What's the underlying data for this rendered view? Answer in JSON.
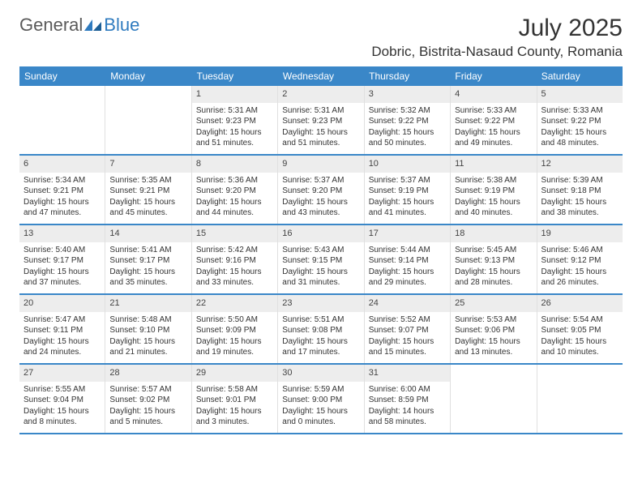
{
  "logo": {
    "text1": "General",
    "text2": "Blue"
  },
  "title": "July 2025",
  "location": "Dobric, Bistrita-Nasaud County, Romania",
  "colors": {
    "brand_blue": "#3a87c8",
    "header_text": "#ffffff",
    "daynum_bg": "#ededed",
    "text": "#333333",
    "logo_gray": "#5a5a5a"
  },
  "dow": [
    "Sunday",
    "Monday",
    "Tuesday",
    "Wednesday",
    "Thursday",
    "Friday",
    "Saturday"
  ],
  "weeks": [
    [
      {
        "n": "",
        "sr": "",
        "ss": "",
        "d1": "",
        "d2": ""
      },
      {
        "n": "",
        "sr": "",
        "ss": "",
        "d1": "",
        "d2": ""
      },
      {
        "n": "1",
        "sr": "Sunrise: 5:31 AM",
        "ss": "Sunset: 9:23 PM",
        "d1": "Daylight: 15 hours",
        "d2": "and 51 minutes."
      },
      {
        "n": "2",
        "sr": "Sunrise: 5:31 AM",
        "ss": "Sunset: 9:23 PM",
        "d1": "Daylight: 15 hours",
        "d2": "and 51 minutes."
      },
      {
        "n": "3",
        "sr": "Sunrise: 5:32 AM",
        "ss": "Sunset: 9:22 PM",
        "d1": "Daylight: 15 hours",
        "d2": "and 50 minutes."
      },
      {
        "n": "4",
        "sr": "Sunrise: 5:33 AM",
        "ss": "Sunset: 9:22 PM",
        "d1": "Daylight: 15 hours",
        "d2": "and 49 minutes."
      },
      {
        "n": "5",
        "sr": "Sunrise: 5:33 AM",
        "ss": "Sunset: 9:22 PM",
        "d1": "Daylight: 15 hours",
        "d2": "and 48 minutes."
      }
    ],
    [
      {
        "n": "6",
        "sr": "Sunrise: 5:34 AM",
        "ss": "Sunset: 9:21 PM",
        "d1": "Daylight: 15 hours",
        "d2": "and 47 minutes."
      },
      {
        "n": "7",
        "sr": "Sunrise: 5:35 AM",
        "ss": "Sunset: 9:21 PM",
        "d1": "Daylight: 15 hours",
        "d2": "and 45 minutes."
      },
      {
        "n": "8",
        "sr": "Sunrise: 5:36 AM",
        "ss": "Sunset: 9:20 PM",
        "d1": "Daylight: 15 hours",
        "d2": "and 44 minutes."
      },
      {
        "n": "9",
        "sr": "Sunrise: 5:37 AM",
        "ss": "Sunset: 9:20 PM",
        "d1": "Daylight: 15 hours",
        "d2": "and 43 minutes."
      },
      {
        "n": "10",
        "sr": "Sunrise: 5:37 AM",
        "ss": "Sunset: 9:19 PM",
        "d1": "Daylight: 15 hours",
        "d2": "and 41 minutes."
      },
      {
        "n": "11",
        "sr": "Sunrise: 5:38 AM",
        "ss": "Sunset: 9:19 PM",
        "d1": "Daylight: 15 hours",
        "d2": "and 40 minutes."
      },
      {
        "n": "12",
        "sr": "Sunrise: 5:39 AM",
        "ss": "Sunset: 9:18 PM",
        "d1": "Daylight: 15 hours",
        "d2": "and 38 minutes."
      }
    ],
    [
      {
        "n": "13",
        "sr": "Sunrise: 5:40 AM",
        "ss": "Sunset: 9:17 PM",
        "d1": "Daylight: 15 hours",
        "d2": "and 37 minutes."
      },
      {
        "n": "14",
        "sr": "Sunrise: 5:41 AM",
        "ss": "Sunset: 9:17 PM",
        "d1": "Daylight: 15 hours",
        "d2": "and 35 minutes."
      },
      {
        "n": "15",
        "sr": "Sunrise: 5:42 AM",
        "ss": "Sunset: 9:16 PM",
        "d1": "Daylight: 15 hours",
        "d2": "and 33 minutes."
      },
      {
        "n": "16",
        "sr": "Sunrise: 5:43 AM",
        "ss": "Sunset: 9:15 PM",
        "d1": "Daylight: 15 hours",
        "d2": "and 31 minutes."
      },
      {
        "n": "17",
        "sr": "Sunrise: 5:44 AM",
        "ss": "Sunset: 9:14 PM",
        "d1": "Daylight: 15 hours",
        "d2": "and 29 minutes."
      },
      {
        "n": "18",
        "sr": "Sunrise: 5:45 AM",
        "ss": "Sunset: 9:13 PM",
        "d1": "Daylight: 15 hours",
        "d2": "and 28 minutes."
      },
      {
        "n": "19",
        "sr": "Sunrise: 5:46 AM",
        "ss": "Sunset: 9:12 PM",
        "d1": "Daylight: 15 hours",
        "d2": "and 26 minutes."
      }
    ],
    [
      {
        "n": "20",
        "sr": "Sunrise: 5:47 AM",
        "ss": "Sunset: 9:11 PM",
        "d1": "Daylight: 15 hours",
        "d2": "and 24 minutes."
      },
      {
        "n": "21",
        "sr": "Sunrise: 5:48 AM",
        "ss": "Sunset: 9:10 PM",
        "d1": "Daylight: 15 hours",
        "d2": "and 21 minutes."
      },
      {
        "n": "22",
        "sr": "Sunrise: 5:50 AM",
        "ss": "Sunset: 9:09 PM",
        "d1": "Daylight: 15 hours",
        "d2": "and 19 minutes."
      },
      {
        "n": "23",
        "sr": "Sunrise: 5:51 AM",
        "ss": "Sunset: 9:08 PM",
        "d1": "Daylight: 15 hours",
        "d2": "and 17 minutes."
      },
      {
        "n": "24",
        "sr": "Sunrise: 5:52 AM",
        "ss": "Sunset: 9:07 PM",
        "d1": "Daylight: 15 hours",
        "d2": "and 15 minutes."
      },
      {
        "n": "25",
        "sr": "Sunrise: 5:53 AM",
        "ss": "Sunset: 9:06 PM",
        "d1": "Daylight: 15 hours",
        "d2": "and 13 minutes."
      },
      {
        "n": "26",
        "sr": "Sunrise: 5:54 AM",
        "ss": "Sunset: 9:05 PM",
        "d1": "Daylight: 15 hours",
        "d2": "and 10 minutes."
      }
    ],
    [
      {
        "n": "27",
        "sr": "Sunrise: 5:55 AM",
        "ss": "Sunset: 9:04 PM",
        "d1": "Daylight: 15 hours",
        "d2": "and 8 minutes."
      },
      {
        "n": "28",
        "sr": "Sunrise: 5:57 AM",
        "ss": "Sunset: 9:02 PM",
        "d1": "Daylight: 15 hours",
        "d2": "and 5 minutes."
      },
      {
        "n": "29",
        "sr": "Sunrise: 5:58 AM",
        "ss": "Sunset: 9:01 PM",
        "d1": "Daylight: 15 hours",
        "d2": "and 3 minutes."
      },
      {
        "n": "30",
        "sr": "Sunrise: 5:59 AM",
        "ss": "Sunset: 9:00 PM",
        "d1": "Daylight: 15 hours",
        "d2": "and 0 minutes."
      },
      {
        "n": "31",
        "sr": "Sunrise: 6:00 AM",
        "ss": "Sunset: 8:59 PM",
        "d1": "Daylight: 14 hours",
        "d2": "and 58 minutes."
      },
      {
        "n": "",
        "sr": "",
        "ss": "",
        "d1": "",
        "d2": ""
      },
      {
        "n": "",
        "sr": "",
        "ss": "",
        "d1": "",
        "d2": ""
      }
    ]
  ]
}
